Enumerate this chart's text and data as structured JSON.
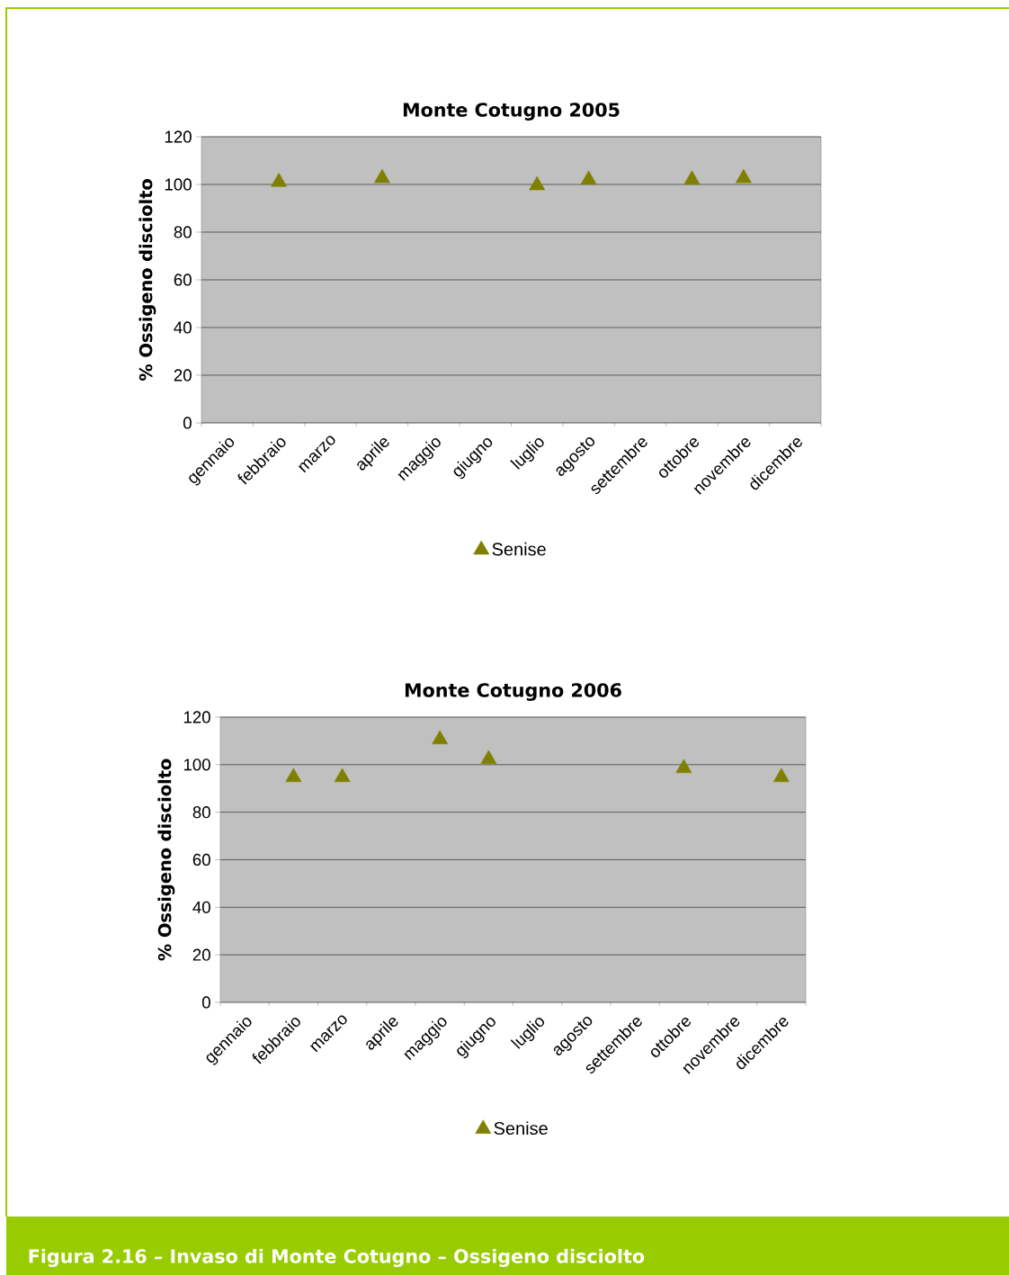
{
  "chart_data": [
    {
      "type": "scatter",
      "title": "Monte Cotugno 2005",
      "ylabel": "% Ossigeno disciolto",
      "categories": [
        "gennaio",
        "febbraio",
        "marzo",
        "aprile",
        "maggio",
        "giugno",
        "luglio",
        "agosto",
        "settembre",
        "ottobre",
        "novembre",
        "dicembre"
      ],
      "series": [
        {
          "name": "Senise",
          "color": "#808000",
          "values": [
            null,
            101,
            null,
            102.6,
            null,
            null,
            99.6,
            102,
            null,
            102,
            102.6,
            null
          ]
        }
      ],
      "ylim": [
        0,
        120
      ],
      "yticks": [
        0,
        20,
        40,
        60,
        80,
        100,
        120
      ],
      "grid": "y",
      "legend": "bottom",
      "marker": "triangle",
      "annotations": [
        "Figura 2.16 – Invaso di Monte Cotugno – Ossigeno disciolto"
      ]
    },
    {
      "type": "scatter",
      "title": "Monte Cotugno 2006",
      "ylabel": "% Ossigeno disciolto",
      "categories": [
        "gennaio",
        "febbraio",
        "marzo",
        "aprile",
        "maggio",
        "giugno",
        "luglio",
        "agosto",
        "settembre",
        "ottobre",
        "novembre",
        "dicembre"
      ],
      "series": [
        {
          "name": "Senise",
          "color": "#808000",
          "values": [
            null,
            94.7,
            94.7,
            null,
            110.6,
            102.3,
            null,
            null,
            null,
            98.5,
            null,
            94.7
          ]
        }
      ],
      "ylim": [
        0,
        120
      ],
      "yticks": [
        0,
        20,
        40,
        60,
        80,
        100,
        120
      ],
      "grid": "y",
      "legend": "bottom",
      "marker": "triangle"
    }
  ]
}
